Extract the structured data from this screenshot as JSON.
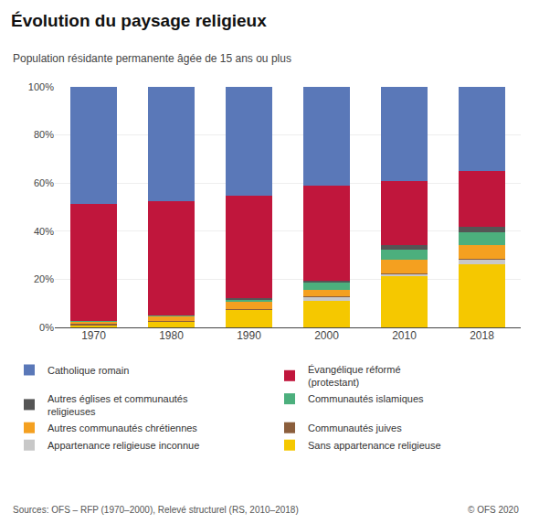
{
  "chart_data": {
    "type": "bar",
    "stacked": true,
    "title": "Évolution du paysage religieux",
    "subtitle": "Population résidante permanente âgée de 15 ans ou plus",
    "annotations": [
      "Sources: OFS – RFP (1970–2000), Relevé structurel (RS, 2010–2018)",
      "© OFS 2020"
    ],
    "categories": [
      "1970",
      "1980",
      "1990",
      "2000",
      "2010",
      "2018"
    ],
    "series": [
      {
        "name": "Sans appartenance religieuse",
        "color": "#f5c800",
        "values": [
          1.1,
          2.4,
          7.4,
          11.1,
          21.4,
          26.3
        ]
      },
      {
        "name": "Appartenance religieuse inconnue",
        "color": "#c8c8c8",
        "values": [
          0.0,
          0.0,
          0.0,
          1.5,
          0.8,
          2.1
        ]
      },
      {
        "name": "Communautés juives",
        "color": "#8B5E3C",
        "values": [
          0.3,
          0.3,
          0.3,
          0.2,
          0.2,
          0.3
        ]
      },
      {
        "name": "Autres communautés chrétiennes",
        "color": "#f4a020",
        "values": [
          1.0,
          2.0,
          3.0,
          2.8,
          5.7,
          5.7
        ]
      },
      {
        "name": "Communautés islamiques",
        "color": "#4caf7d",
        "values": [
          0.1,
          0.3,
          1.0,
          3.0,
          4.3,
          5.1
        ]
      },
      {
        "name": "Autres églises et communautés\nreligieuses",
        "color": "#555555",
        "values": [
          0.0,
          0.0,
          0.5,
          0.8,
          2.0,
          2.5
        ]
      },
      {
        "name": "Évangélique réformé\n(protestant)",
        "color": "#c0163c",
        "values": [
          49.0,
          47.6,
          42.5,
          39.6,
          26.3,
          23.0
        ]
      },
      {
        "name": "Catholique romain",
        "color": "#5a78b8",
        "values": [
          48.5,
          47.4,
          45.3,
          41.0,
          39.3,
          35.0
        ]
      }
    ],
    "ylim": [
      0,
      100
    ],
    "yticks": [
      {
        "value": 0,
        "label": "0%"
      },
      {
        "value": 20,
        "label": "20%"
      },
      {
        "value": 40,
        "label": "40%"
      },
      {
        "value": 60,
        "label": "60%"
      },
      {
        "value": 80,
        "label": "80%"
      },
      {
        "value": 100,
        "label": "100%"
      }
    ],
    "grid": true,
    "legend": "bottom"
  }
}
